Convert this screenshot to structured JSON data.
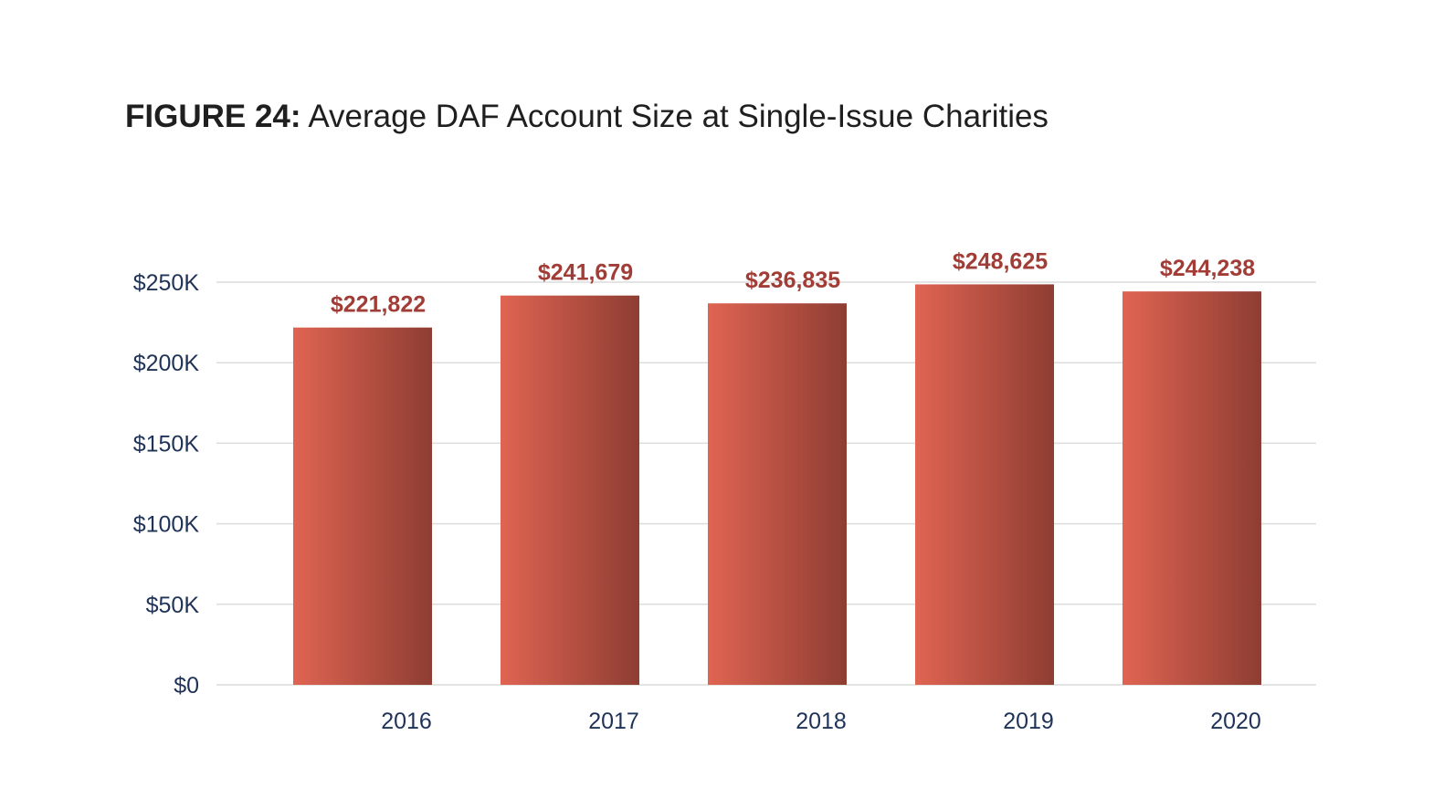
{
  "chart_data": {
    "type": "bar",
    "title_prefix": "FIGURE 24:",
    "title": "Average DAF Account Size at Single-Issue Charities",
    "xlabel": "",
    "ylabel": "",
    "categories": [
      "2016",
      "2017",
      "2018",
      "2019",
      "2020"
    ],
    "values": [
      221822,
      241679,
      236835,
      248625,
      244238
    ],
    "data_labels": [
      "$221,822",
      "$241,679",
      "$236,835",
      "$248,625",
      "$244,238"
    ],
    "ylim": [
      0,
      250000
    ],
    "yticks": [
      0,
      50000,
      100000,
      150000,
      200000,
      250000
    ],
    "ytick_labels": [
      "$0",
      "$50K",
      "$100K",
      "$150K",
      "$200K",
      "$250K"
    ],
    "grid": true,
    "legend": "none",
    "colors": {
      "bar_light": "#e06452",
      "bar_dark": "#8e3d33",
      "data_label": "#a13d36",
      "axis_text": "#1f3358",
      "grid": "#dcdcdc"
    }
  }
}
